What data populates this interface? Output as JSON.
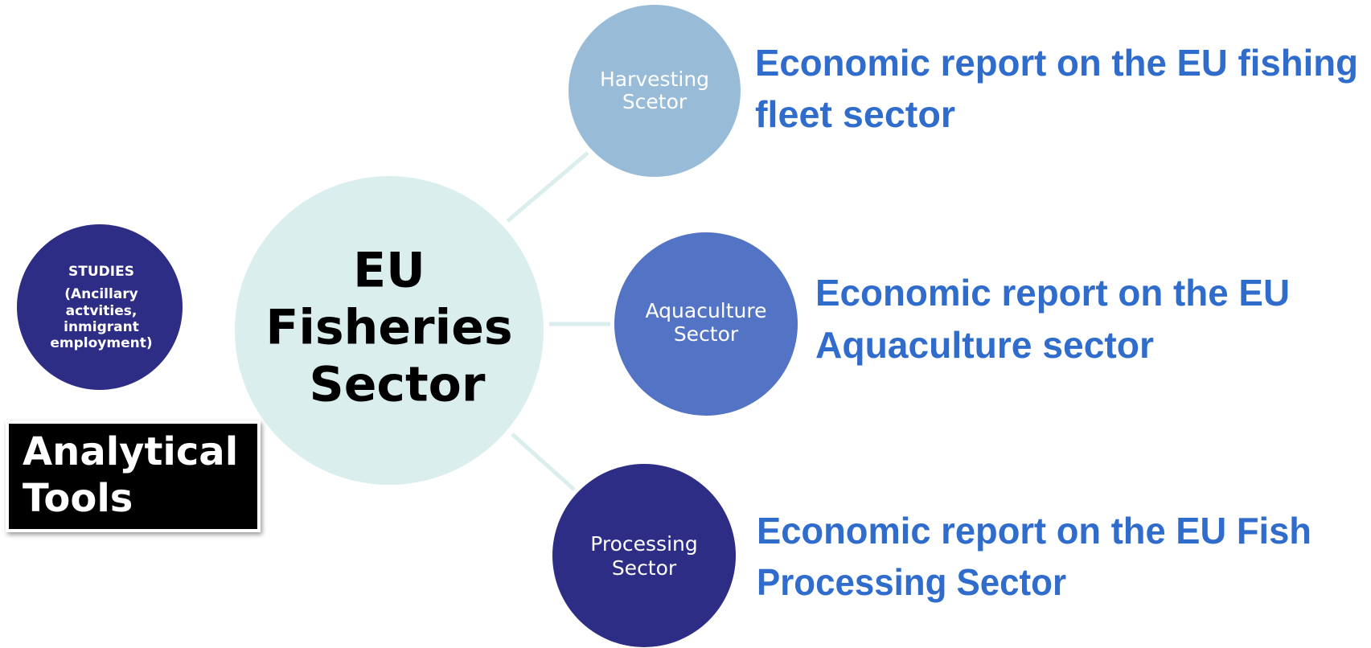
{
  "center": {
    "lines": [
      "EU",
      "Fisheries",
      "Sector"
    ]
  },
  "studies": {
    "lines": [
      "STUDIES",
      "(Ancillary",
      "actvities,",
      "inmigrant",
      "employment)"
    ]
  },
  "tools": {
    "lines": [
      "Analytical",
      "Tools"
    ]
  },
  "sectors": [
    {
      "name": [
        "Harvesting",
        "Scetor"
      ],
      "report": [
        "Economic report on the EU fishing",
        "fleet sector"
      ]
    },
    {
      "name": [
        "Aquaculture",
        "Sector"
      ],
      "report": [
        "Economic report on the EU",
        "Aquaculture sector"
      ]
    },
    {
      "name": [
        "Processing",
        "Sector"
      ],
      "report": [
        "Economic report on the EU Fish",
        "Processing Sector"
      ]
    }
  ]
}
